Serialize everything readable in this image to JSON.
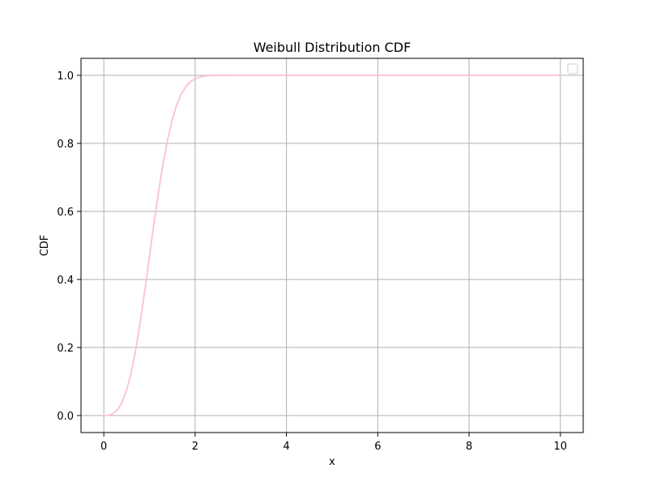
{
  "chart_data": {
    "type": "line",
    "title": "Weibull Distribution CDF",
    "xlabel": "x",
    "ylabel": "CDF",
    "xlim": [
      -0.5,
      10.5
    ],
    "ylim": [
      -0.05,
      1.05
    ],
    "xticks": [
      0,
      2,
      4,
      6,
      8,
      10
    ],
    "yticks": [
      0.0,
      0.2,
      0.4,
      0.6,
      0.8,
      1.0
    ],
    "xtick_labels": [
      "0",
      "2",
      "4",
      "6",
      "8",
      "10"
    ],
    "ytick_labels": [
      "0.0",
      "0.2",
      "0.4",
      "0.6",
      "0.8",
      "1.0"
    ],
    "grid": true,
    "legend": {
      "placement": "upper-right",
      "entries": []
    },
    "series": [
      {
        "color": "#ffc0cb",
        "x": [
          0,
          0.1,
          0.2,
          0.3,
          0.4,
          0.5,
          0.6,
          0.7,
          0.8,
          0.9,
          1.0,
          1.1,
          1.2,
          1.3,
          1.4,
          1.5,
          1.6,
          1.7,
          1.8,
          1.9,
          2.0,
          2.1,
          2.2,
          2.3,
          2.4,
          2.5,
          2.6,
          2.7,
          2.8,
          2.9,
          3.0,
          3.2,
          3.4,
          3.6,
          3.8,
          4.0,
          5.0,
          6.0,
          7.0,
          8.0,
          9.0,
          10.0
        ],
        "y": [
          0.0,
          0.0006,
          0.005,
          0.0167,
          0.0388,
          0.0751,
          0.1265,
          0.1947,
          0.2771,
          0.3698,
          0.4682,
          0.5661,
          0.6589,
          0.7421,
          0.8129,
          0.8702,
          0.9142,
          0.9459,
          0.9676,
          0.9815,
          0.99,
          0.9948,
          0.9975,
          0.9988,
          0.9995,
          0.9998,
          0.9999,
          1.0,
          1.0,
          1.0,
          1.0,
          1.0,
          1.0,
          1.0,
          1.0,
          1.0,
          1.0,
          1.0,
          1.0,
          1.0,
          1.0,
          1.0
        ]
      }
    ]
  }
}
